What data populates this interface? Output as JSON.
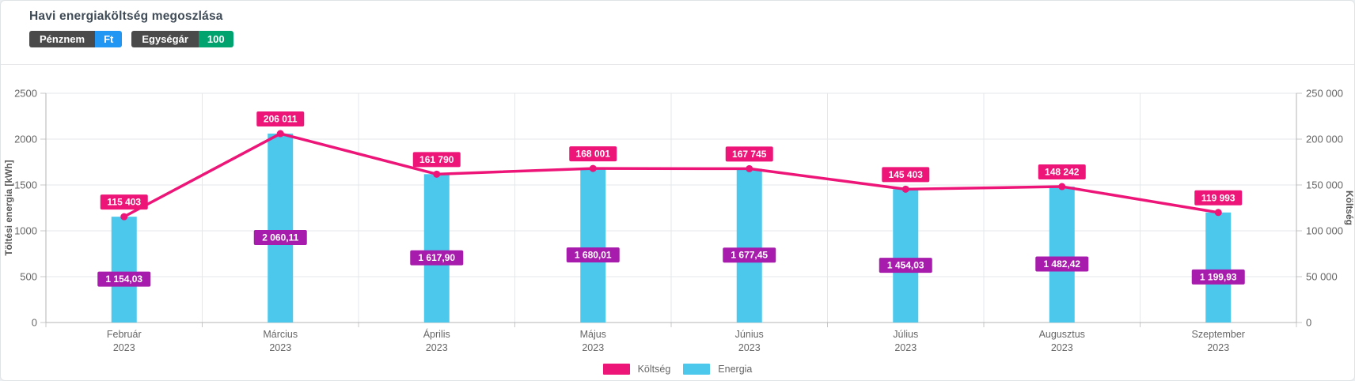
{
  "header": {
    "title": "Havi energiaköltség megoszlása",
    "badges": [
      {
        "label": "Pénznem",
        "value": "Ft",
        "value_color": "#2196f3"
      },
      {
        "label": "Egységár",
        "value": "100",
        "value_color": "#00a36e"
      }
    ]
  },
  "colors": {
    "cost_pink": "#ee1578",
    "energy_cyan": "#4cc8ec",
    "energy_label_purple": "#a71cac",
    "grid": "#e6e7e9",
    "axis": "#b6b6b6",
    "tick_text": "#666666"
  },
  "chart_data": {
    "type": "bar+line combo",
    "title": "Havi energiaköltség megoszlása",
    "categories": [
      {
        "month": "Február",
        "year": "2023"
      },
      {
        "month": "Március",
        "year": "2023"
      },
      {
        "month": "Április",
        "year": "2023"
      },
      {
        "month": "Május",
        "year": "2023"
      },
      {
        "month": "Június",
        "year": "2023"
      },
      {
        "month": "Július",
        "year": "2023"
      },
      {
        "month": "Augusztus",
        "year": "2023"
      },
      {
        "month": "Szeptember",
        "year": "2023"
      }
    ],
    "series": [
      {
        "name": "Költség",
        "type": "line",
        "axis": "right",
        "color": "#ee1578",
        "values": [
          115403,
          206011,
          161790,
          168001,
          167745,
          145403,
          148242,
          119993
        ],
        "labels": [
          "115 403",
          "206 011",
          "161 790",
          "168 001",
          "167 745",
          "145 403",
          "148 242",
          "119 993"
        ]
      },
      {
        "name": "Energia",
        "type": "bar",
        "axis": "left",
        "color": "#4cc8ec",
        "label_bg": "#a71cac",
        "values": [
          1154.03,
          2060.11,
          1617.9,
          1680.01,
          1677.45,
          1454.03,
          1482.42,
          1199.93
        ],
        "labels": [
          "1 154,03",
          "2 060,11",
          "1 617,90",
          "1 680,01",
          "1 677,45",
          "1 454,03",
          "1 482,42",
          "1 199,93"
        ]
      }
    ],
    "left_axis": {
      "title": "Töltési energia [kWh]",
      "min": 0,
      "max": 2500,
      "ticks": [
        "0",
        "500",
        "1000",
        "1500",
        "2000",
        "2500"
      ]
    },
    "right_axis": {
      "title": "Költség",
      "min": 0,
      "max": 250000,
      "ticks": [
        "0",
        "50 000",
        "100 000",
        "150 000",
        "200 000",
        "250 000"
      ]
    },
    "grid": true,
    "legend_position": "bottom-center",
    "legend": [
      {
        "label": "Költség",
        "color": "#ee1578"
      },
      {
        "label": "Energia",
        "color": "#4cc8ec"
      }
    ]
  }
}
